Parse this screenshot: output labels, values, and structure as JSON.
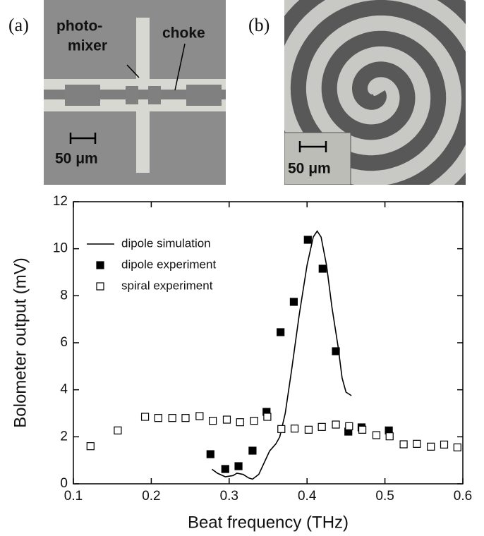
{
  "panels": [
    {
      "label": "(a)",
      "annotations": [
        "photo-",
        "mixer",
        "choke"
      ],
      "scale": "50 μm"
    },
    {
      "label": "(b)",
      "scale": "50 μm"
    }
  ],
  "chart_data": {
    "type": "scatter",
    "xlabel": "Beat frequency (THz)",
    "ylabel": "Bolometer output (mV)",
    "xlim": [
      0.1,
      0.6
    ],
    "xticks": [
      0.1,
      0.2,
      0.3,
      0.4,
      0.5,
      0.6
    ],
    "ylim": [
      0,
      12
    ],
    "yticks": [
      0,
      2,
      4,
      6,
      8,
      10,
      12
    ],
    "legend": "upper left",
    "series": [
      {
        "name": "dipole simulation",
        "type": "line",
        "color": "#000000",
        "x": [
          0.278,
          0.285,
          0.295,
          0.305,
          0.31,
          0.318,
          0.325,
          0.33,
          0.338,
          0.345,
          0.352,
          0.36,
          0.365,
          0.372,
          0.38,
          0.39,
          0.4,
          0.408,
          0.413,
          0.418,
          0.425,
          0.432,
          0.44,
          0.445,
          0.45,
          0.457
        ],
        "values": [
          0.62,
          0.45,
          0.3,
          0.35,
          0.45,
          0.4,
          0.25,
          0.2,
          0.4,
          0.9,
          1.4,
          1.7,
          2.0,
          3.0,
          4.8,
          7.2,
          9.3,
          10.5,
          10.75,
          10.5,
          9.3,
          7.5,
          5.8,
          4.5,
          3.9,
          3.75
        ]
      },
      {
        "name": "dipole experiment",
        "type": "scatter",
        "marker": "filled",
        "color": "#000000",
        "x": [
          0.276,
          0.295,
          0.312,
          0.33,
          0.348,
          0.366,
          0.383,
          0.401,
          0.42,
          0.437,
          0.453,
          0.47,
          0.505
        ],
        "values": [
          1.26,
          0.63,
          0.75,
          1.41,
          3.06,
          6.45,
          7.74,
          10.38,
          9.15,
          5.64,
          2.22,
          2.4,
          2.27
        ]
      },
      {
        "name": "spiral experiment",
        "type": "scatter",
        "marker": "open",
        "color": "#000000",
        "x": [
          0.122,
          0.157,
          0.192,
          0.209,
          0.227,
          0.244,
          0.262,
          0.279,
          0.297,
          0.314,
          0.332,
          0.349,
          0.367,
          0.384,
          0.402,
          0.419,
          0.437,
          0.454,
          0.471,
          0.489,
          0.506,
          0.524,
          0.541,
          0.559,
          0.576,
          0.593
        ],
        "values": [
          1.6,
          2.27,
          2.85,
          2.8,
          2.8,
          2.8,
          2.88,
          2.68,
          2.73,
          2.62,
          2.68,
          2.85,
          2.33,
          2.35,
          2.3,
          2.42,
          2.52,
          2.45,
          2.3,
          2.07,
          2.02,
          1.68,
          1.7,
          1.58,
          1.67,
          1.55
        ]
      }
    ]
  }
}
